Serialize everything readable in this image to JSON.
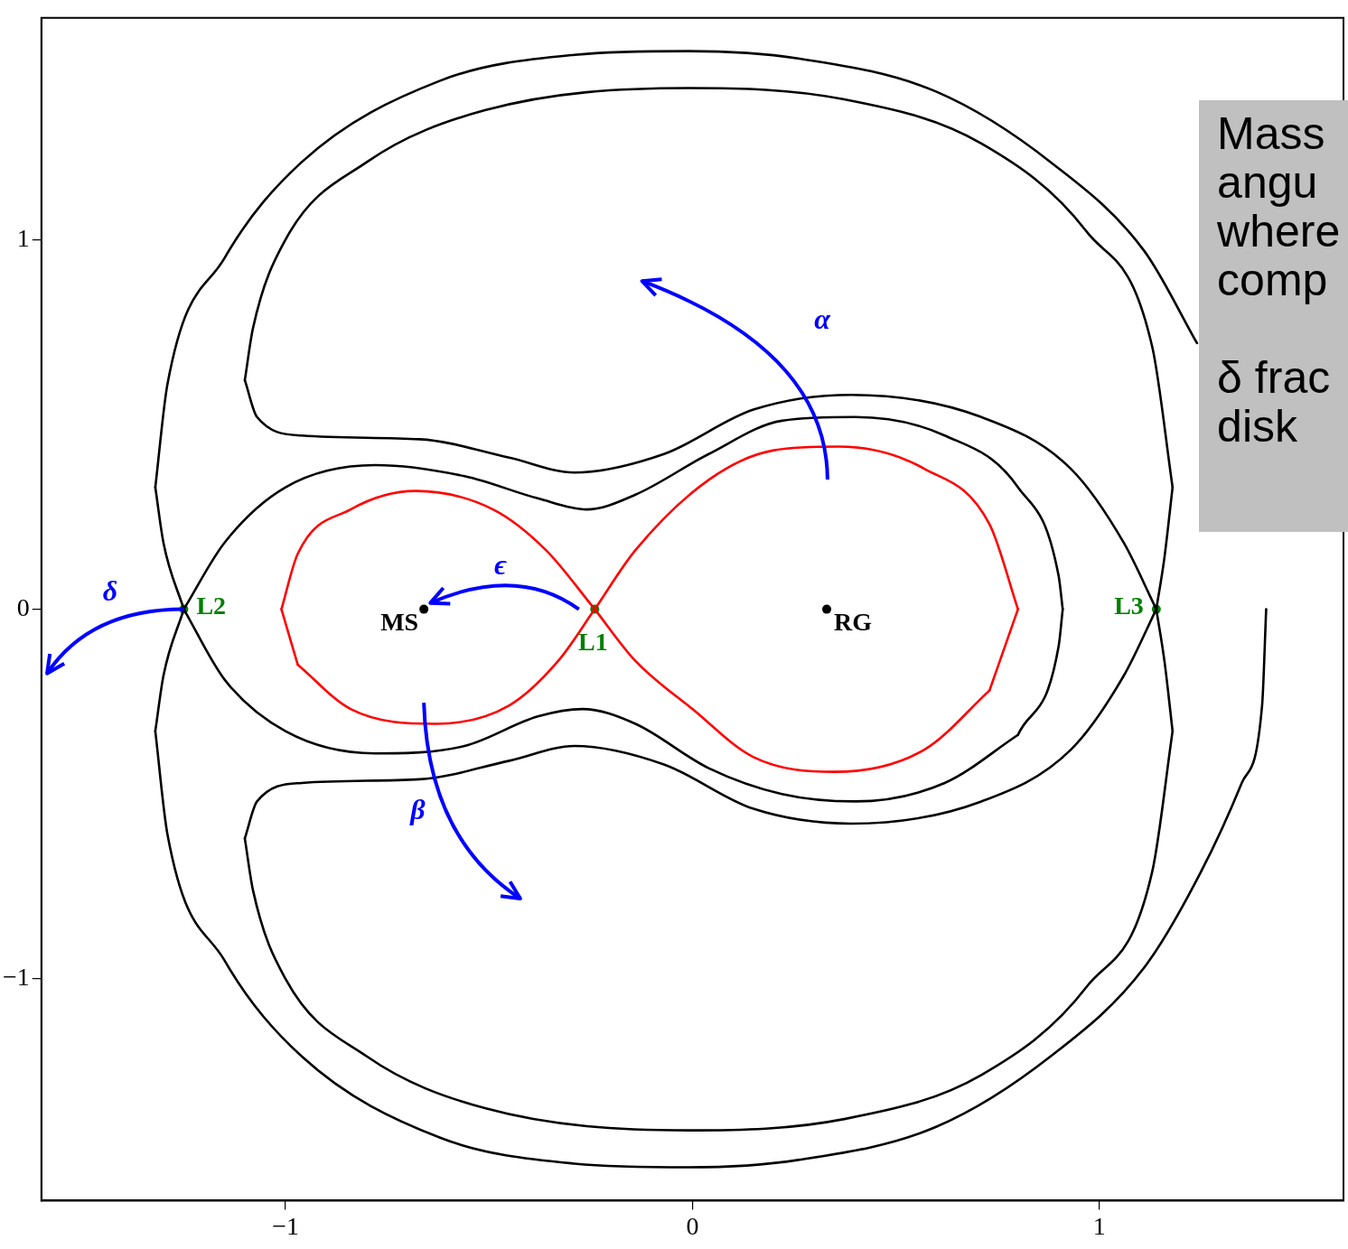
{
  "chart_data": {
    "type": "line",
    "xlim": [
      -1.6,
      1.6
    ],
    "ylim": [
      -1.6,
      1.6
    ],
    "xticks": [
      -1,
      0,
      1
    ],
    "yticks": [
      -1,
      0,
      1
    ],
    "grid": false,
    "marker": "none",
    "series": [
      {
        "type": "line",
        "color": "#000000",
        "x": [
          -1.1,
          -1.07,
          -0.96,
          -0.67,
          -0.45,
          -0.29,
          -0.07,
          0.15,
          0.39,
          0.71,
          0.93,
          1.06,
          1.14
        ],
        "values": [
          0.62,
          0.52,
          0.47,
          0.46,
          0.41,
          0.37,
          0.42,
          0.54,
          0.58,
          0.52,
          0.38,
          0.18,
          0
        ]
      },
      {
        "type": "line",
        "color": "#000000",
        "x": [
          -1.1,
          -1.08,
          -1.0,
          -0.8,
          -0.51,
          -0.01,
          0.37,
          0.71,
          0.97,
          1.13,
          1.18
        ],
        "values": [
          0.62,
          0.76,
          1.0,
          1.21,
          1.35,
          1.41,
          1.38,
          1.26,
          1.02,
          0.71,
          0.33
        ]
      },
      {
        "type": "line",
        "color": "#000000",
        "x": [
          1.14,
          1.16,
          1.18
        ],
        "values": [
          0,
          0.14,
          0.33
        ]
      },
      {
        "type": "line",
        "color": "#000000",
        "x": [
          -1.1,
          -1.07,
          -0.96,
          -0.67,
          -0.45,
          -0.29,
          -0.07,
          0.15,
          0.39,
          0.71,
          0.93,
          1.06,
          1.14
        ],
        "values": [
          -0.62,
          -0.52,
          -0.47,
          -0.46,
          -0.41,
          -0.37,
          -0.42,
          -0.54,
          -0.58,
          -0.52,
          -0.38,
          -0.18,
          0
        ]
      },
      {
        "type": "line",
        "color": "#000000",
        "x": [
          -1.1,
          -1.08,
          -1.0,
          -0.8,
          -0.51,
          -0.01,
          0.37,
          0.71,
          0.97,
          1.13,
          1.18
        ],
        "values": [
          -0.62,
          -0.76,
          -1.0,
          -1.21,
          -1.35,
          -1.41,
          -1.38,
          -1.26,
          -1.02,
          -0.71,
          -0.33
        ]
      },
      {
        "type": "line",
        "color": "#000000",
        "x": [
          1.14,
          1.16,
          1.18
        ],
        "values": [
          0,
          -0.14,
          -0.33
        ]
      },
      {
        "type": "line",
        "color": "#000000",
        "x": [
          -1.32,
          -1.3,
          -1.25
        ],
        "values": [
          0.33,
          0.18,
          0
        ]
      },
      {
        "type": "line",
        "color": "#000000",
        "x": [
          -1.32,
          -1.29,
          -1.15,
          -0.96,
          -0.62,
          -0.29,
          -0.01,
          0.26,
          0.6,
          0.88,
          1.11,
          1.24
        ],
        "values": [
          0.33,
          0.61,
          0.95,
          1.21,
          1.43,
          1.5,
          1.51,
          1.49,
          1.4,
          1.21,
          0.97,
          0.72
        ]
      },
      {
        "type": "line",
        "color": "#000000",
        "x": [
          -1.32,
          -1.3,
          -1.25
        ],
        "values": [
          -0.33,
          -0.18,
          0
        ]
      },
      {
        "type": "line",
        "color": "#000000",
        "x": [
          -1.32,
          -1.29,
          -1.15,
          -0.96,
          -0.62,
          -0.29,
          -0.01,
          0.26,
          0.6,
          0.88,
          1.11,
          1.25,
          1.35,
          1.4,
          1.41
        ],
        "values": [
          -0.33,
          -0.61,
          -0.95,
          -1.21,
          -1.43,
          -1.5,
          -1.51,
          -1.49,
          -1.4,
          -1.21,
          -0.97,
          -0.71,
          -0.47,
          -0.26,
          0
        ]
      },
      {
        "type": "line",
        "color": "#000000",
        "x": [
          -1.25,
          -1.15,
          -1.0,
          -0.78,
          -0.56,
          -0.38,
          -0.26,
          -0.14,
          0.04,
          0.22,
          0.4,
          0.62,
          0.8,
          0.9,
          0.91
        ],
        "values": [
          0,
          0.18,
          0.33,
          0.39,
          0.36,
          0.3,
          0.27,
          0.31,
          0.42,
          0.51,
          0.52,
          0.47,
          0.33,
          0.09,
          0
        ]
      },
      {
        "type": "line",
        "color": "#000000",
        "x": [
          -1.25,
          -1.15,
          -1.0,
          -0.78,
          -0.56,
          -0.38,
          -0.27,
          -0.14,
          0.04,
          0.22,
          0.4,
          0.62,
          0.8
        ],
        "values": [
          0,
          -0.19,
          -0.33,
          -0.39,
          -0.37,
          -0.29,
          -0.27,
          -0.31,
          -0.43,
          -0.5,
          -0.52,
          -0.47,
          -0.34
        ]
      },
      {
        "type": "line",
        "color": "#000000",
        "x": [
          0.8,
          0.9,
          0.91
        ],
        "values": [
          -0.34,
          -0.1,
          0
        ]
      },
      {
        "type": "line",
        "color": "#ff0000",
        "x": [
          -1.01,
          -0.97,
          -0.84,
          -0.68,
          -0.49,
          -0.36,
          -0.24
        ],
        "values": [
          0,
          0.15,
          0.27,
          0.32,
          0.27,
          0.16,
          0
        ]
      },
      {
        "type": "line",
        "color": "#ff0000",
        "x": [
          -0.97,
          -0.84,
          -0.63,
          -0.45,
          -0.33,
          -0.24
        ],
        "values": [
          -0.15,
          -0.27,
          -0.31,
          -0.26,
          -0.14,
          0
        ]
      },
      {
        "type": "line",
        "color": "#ff0000",
        "x": [
          -1.01,
          -0.97
        ],
        "values": [
          0,
          -0.15
        ]
      },
      {
        "type": "line",
        "color": "#ff0000",
        "x": [
          -0.24,
          -0.14,
          0.04,
          0.2,
          0.36,
          0.57,
          0.73,
          0.8
        ],
        "values": [
          0,
          0.16,
          0.35,
          0.43,
          0.44,
          0.38,
          0.23,
          0
        ]
      },
      {
        "type": "line",
        "color": "#ff0000",
        "x": [
          -0.24,
          -0.14,
          0.0,
          0.15,
          0.35,
          0.57,
          0.73
        ],
        "values": [
          0,
          -0.14,
          -0.27,
          -0.4,
          -0.44,
          -0.38,
          -0.22
        ]
      },
      {
        "type": "line",
        "color": "#ff0000",
        "x": [
          0.73,
          0.8
        ],
        "values": [
          -0.22,
          0
        ]
      },
      {
        "type": "scatter",
        "color": "#000000",
        "marker": "circle",
        "x": [
          -0.66,
          0.33
        ],
        "values": [
          0,
          0
        ]
      },
      {
        "type": "scatter",
        "color": "#008000",
        "marker": "circle",
        "x": [
          -0.24,
          -1.25,
          1.14
        ],
        "values": [
          0,
          0,
          0
        ]
      }
    ],
    "annotations": [
      {
        "text": "MS",
        "x": -0.66,
        "y": 0
      },
      {
        "text": "RG",
        "x": 0.33,
        "y": 0
      },
      {
        "text": "L1",
        "x": -0.24,
        "y": 0
      },
      {
        "text": "L2",
        "x": -1.25,
        "y": 0
      },
      {
        "text": "L3",
        "x": 1.14,
        "y": 0
      },
      "α",
      "β",
      "δ",
      "ϵ",
      "Mass\nangu\nwhere\ncomp\n\nδ frac\ndisk"
    ]
  }
}
